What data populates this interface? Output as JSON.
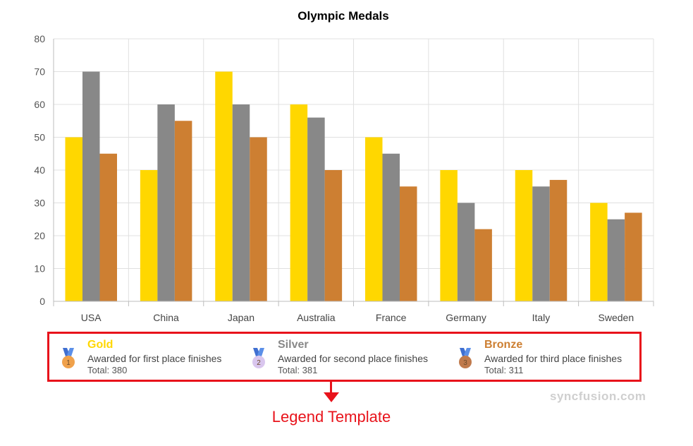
{
  "chart_data": {
    "type": "bar",
    "title": "Olympic Medals",
    "categories": [
      "USA",
      "China",
      "Japan",
      "Australia",
      "France",
      "Germany",
      "Italy",
      "Sweden"
    ],
    "series": [
      {
        "name": "Gold",
        "color": "#FFD700",
        "values": [
          50,
          40,
          70,
          60,
          50,
          40,
          40,
          30
        ]
      },
      {
        "name": "Silver",
        "color": "#888888",
        "values": [
          70,
          60,
          60,
          56,
          45,
          30,
          35,
          25
        ]
      },
      {
        "name": "Bronze",
        "color": "#CD7F32",
        "values": [
          45,
          55,
          50,
          40,
          35,
          22,
          37,
          27
        ]
      }
    ],
    "ylim": [
      0,
      80
    ],
    "yticks": [
      0,
      10,
      20,
      30,
      40,
      50,
      60,
      70,
      80
    ],
    "grid": true
  },
  "legend": {
    "items": [
      {
        "name": "Gold",
        "description": "Awarded for first place finishes",
        "total": "Total: 380",
        "color": "#FFD700",
        "medal_number": "1",
        "medal_color": "#F0A14B",
        "icon": "gold-medal-icon"
      },
      {
        "name": "Silver",
        "description": "Awarded for second place finishes",
        "total": "Total: 381",
        "color": "#888888",
        "medal_number": "2",
        "medal_color": "#D9C6EE",
        "icon": "silver-medal-icon"
      },
      {
        "name": "Bronze",
        "description": "Awarded for third place finishes",
        "total": "Total: 311",
        "color": "#CD7F32",
        "medal_number": "3",
        "medal_color": "#C07A4C",
        "icon": "bronze-medal-icon"
      }
    ]
  },
  "annotation": {
    "label": "Legend Template",
    "color": "#e8131b"
  },
  "watermark": "syncfusion.com"
}
